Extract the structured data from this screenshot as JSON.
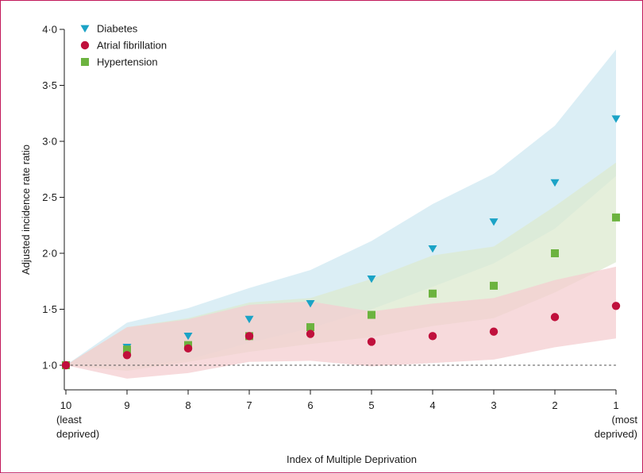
{
  "chart_data": {
    "type": "scatter",
    "xlabel": "Index of Multiple Deprivation",
    "ylabel": "Adjusted incidence rate ratio",
    "categories": [
      "10",
      "9",
      "8",
      "7",
      "6",
      "5",
      "4",
      "3",
      "2",
      "1"
    ],
    "category_sublabels": [
      "(least|deprived)",
      "",
      "",
      "",
      "",
      "",
      "",
      "",
      "",
      "(most|deprived)"
    ],
    "y_ticks": [
      "1·0",
      "1·5",
      "2·0",
      "2·5",
      "3·0",
      "3·5",
      "4·0"
    ],
    "y_tick_values": [
      1.0,
      1.5,
      2.0,
      2.5,
      3.0,
      3.5,
      4.0
    ],
    "ylim": [
      0.8,
      4.0
    ],
    "reference_line": 1.0,
    "grid": false,
    "legend_position": "top-left",
    "series": [
      {
        "name": "Diabetes",
        "marker": "triangle-down",
        "color": "#1ba3c6",
        "band_color": "#cfe8f1",
        "values": [
          1.0,
          1.16,
          1.26,
          1.41,
          1.55,
          1.77,
          2.04,
          2.28,
          2.63,
          3.2
        ],
        "lower": [
          1.0,
          0.98,
          1.05,
          1.2,
          1.33,
          1.5,
          1.7,
          1.91,
          2.22,
          2.69
        ],
        "upper": [
          1.0,
          1.38,
          1.51,
          1.69,
          1.85,
          2.11,
          2.44,
          2.71,
          3.14,
          3.82
        ]
      },
      {
        "name": "Atrial fibrillation",
        "marker": "circle",
        "color": "#c0103c",
        "band_color": "#f4cdd0",
        "values": [
          1.0,
          1.09,
          1.15,
          1.26,
          1.28,
          1.21,
          1.26,
          1.3,
          1.43,
          1.53
        ],
        "lower": [
          1.0,
          0.88,
          0.93,
          1.03,
          1.04,
          0.99,
          1.02,
          1.05,
          1.16,
          1.24
        ],
        "upper": [
          1.0,
          1.34,
          1.41,
          1.54,
          1.57,
          1.48,
          1.55,
          1.6,
          1.76,
          1.88
        ]
      },
      {
        "name": "Hypertension",
        "marker": "square",
        "color": "#6cb33f",
        "band_color": "#dce9cf",
        "values": [
          1.0,
          1.14,
          1.18,
          1.26,
          1.34,
          1.45,
          1.64,
          1.71,
          2.0,
          2.32
        ],
        "lower": [
          1.0,
          0.95,
          1.03,
          1.12,
          1.19,
          1.25,
          1.35,
          1.42,
          1.65,
          1.92
        ],
        "upper": [
          1.0,
          1.34,
          1.42,
          1.56,
          1.6,
          1.77,
          1.98,
          2.06,
          2.42,
          2.81
        ]
      }
    ]
  }
}
